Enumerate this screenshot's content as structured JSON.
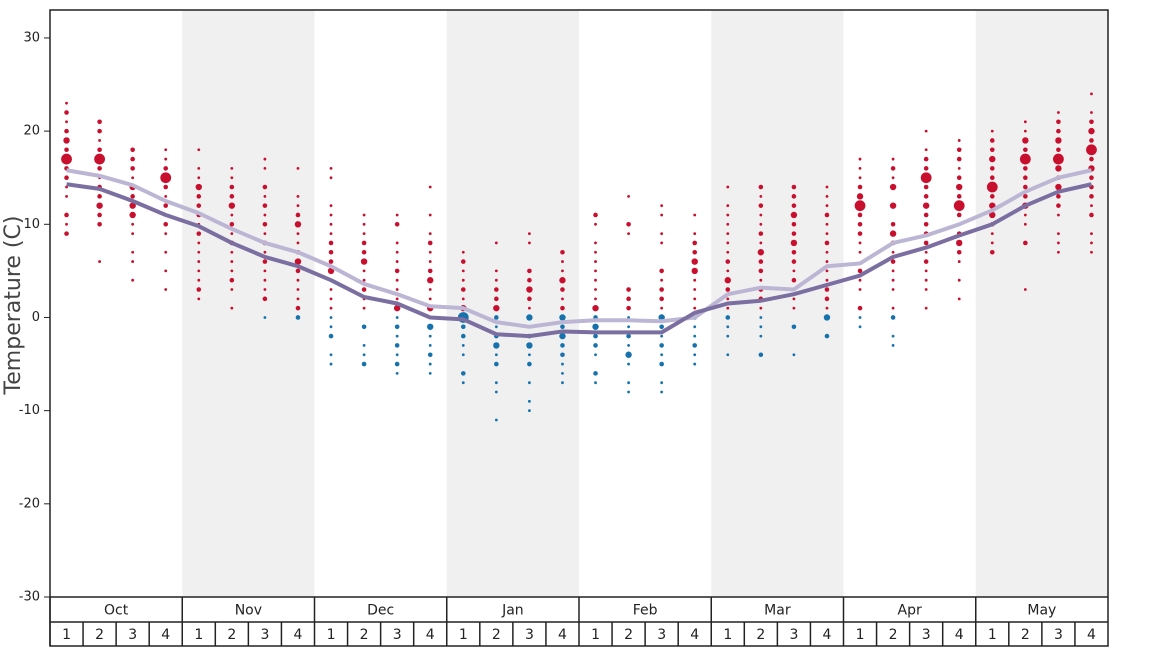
{
  "chart_data": {
    "type": "dotplot",
    "ylabel": "Temperature (C)",
    "months": [
      "Oct",
      "Nov",
      "Dec",
      "Jan",
      "Feb",
      "Mar",
      "Apr",
      "May"
    ],
    "week_numbers": [
      1,
      2,
      3,
      4
    ],
    "ylim": [
      -30,
      33
    ],
    "yticks": [
      -30,
      -20,
      -10,
      0,
      10,
      20,
      30
    ],
    "warm_color": "#c8102e",
    "cold_color": "#1572ad",
    "shade_color": "#f0f0f0",
    "weeks": [
      {
        "temps": [
          23,
          22,
          21,
          20,
          19,
          18,
          17,
          16,
          15,
          14,
          13,
          11,
          10,
          9
        ],
        "counts": [
          1,
          2,
          1,
          2,
          3,
          2,
          4,
          2,
          2,
          1,
          1,
          2,
          1,
          2
        ]
      },
      {
        "temps": [
          21,
          20,
          19,
          18,
          17,
          16,
          15,
          14,
          13,
          12,
          11,
          10,
          6
        ],
        "counts": [
          2,
          2,
          1,
          2,
          4,
          2,
          1,
          2,
          2,
          3,
          2,
          2,
          1
        ]
      },
      {
        "temps": [
          18,
          17,
          16,
          15,
          14,
          13,
          12,
          11,
          10,
          9,
          7,
          6,
          4
        ],
        "counts": [
          2,
          2,
          2,
          1,
          3,
          2,
          3,
          3,
          1,
          1,
          1,
          1,
          1
        ]
      },
      {
        "temps": [
          18,
          17,
          16,
          15,
          14,
          13,
          12,
          11,
          10,
          9,
          7,
          5,
          3
        ],
        "counts": [
          1,
          1,
          2,
          4,
          2,
          1,
          2,
          1,
          2,
          1,
          1,
          1,
          1
        ]
      },
      {
        "temps": [
          18,
          16,
          15,
          14,
          13,
          12,
          11,
          10,
          9,
          8,
          7,
          6,
          5,
          4,
          3,
          2
        ],
        "counts": [
          1,
          1,
          1,
          3,
          2,
          2,
          2,
          1,
          2,
          1,
          1,
          1,
          1,
          1,
          2,
          1
        ]
      },
      {
        "temps": [
          16,
          15,
          14,
          13,
          12,
          11,
          10,
          9,
          8,
          7,
          6,
          5,
          4,
          3,
          1
        ],
        "counts": [
          1,
          1,
          2,
          2,
          3,
          1,
          2,
          1,
          2,
          1,
          1,
          1,
          2,
          1,
          1
        ]
      },
      {
        "temps": [
          17,
          16,
          14,
          13,
          12,
          11,
          10,
          9,
          8,
          7,
          6,
          5,
          4,
          3,
          2,
          0
        ],
        "counts": [
          1,
          1,
          2,
          1,
          2,
          1,
          2,
          1,
          2,
          1,
          2,
          1,
          1,
          1,
          2,
          1
        ]
      },
      {
        "temps": [
          16,
          13,
          12,
          11,
          10,
          9,
          8,
          7,
          6,
          5,
          4,
          3,
          2,
          1,
          0
        ],
        "counts": [
          1,
          1,
          1,
          2,
          3,
          1,
          1,
          2,
          3,
          2,
          1,
          1,
          1,
          2,
          2
        ]
      },
      {
        "temps": [
          16,
          15,
          12,
          11,
          10,
          9,
          8,
          7,
          6,
          5,
          4,
          3,
          2,
          1,
          0,
          -1,
          -2,
          -4,
          -5
        ],
        "counts": [
          1,
          1,
          1,
          1,
          1,
          1,
          2,
          2,
          2,
          3,
          1,
          1,
          1,
          1,
          1,
          1,
          2,
          1,
          1
        ]
      },
      {
        "temps": [
          11,
          10,
          9,
          8,
          7,
          6,
          5,
          4,
          3,
          2,
          1,
          -1,
          -3,
          -4,
          -5
        ],
        "counts": [
          1,
          1,
          1,
          2,
          2,
          3,
          1,
          1,
          2,
          1,
          1,
          2,
          1,
          1,
          2
        ]
      },
      {
        "temps": [
          11,
          10,
          8,
          7,
          6,
          5,
          4,
          3,
          2,
          1,
          0,
          -1,
          -2,
          -3,
          -4,
          -5,
          -6
        ],
        "counts": [
          1,
          2,
          1,
          1,
          1,
          2,
          1,
          1,
          1,
          3,
          1,
          2,
          1,
          2,
          1,
          2,
          1
        ]
      },
      {
        "temps": [
          14,
          11,
          9,
          8,
          7,
          6,
          5,
          4,
          3,
          2,
          1,
          0,
          -1,
          -2,
          -3,
          -4,
          -5,
          -6
        ],
        "counts": [
          1,
          1,
          1,
          2,
          1,
          1,
          2,
          3,
          1,
          1,
          3,
          1,
          3,
          1,
          1,
          2,
          1,
          1
        ]
      },
      {
        "temps": [
          7,
          6,
          5,
          4,
          3,
          2,
          1,
          0,
          -1,
          -2,
          -3,
          -4,
          -6,
          -7
        ],
        "counts": [
          1,
          2,
          1,
          1,
          2,
          1,
          3,
          4,
          2,
          2,
          1,
          1,
          2,
          1
        ]
      },
      {
        "temps": [
          8,
          5,
          4,
          3,
          2,
          1,
          0,
          -1,
          -2,
          -3,
          -4,
          -5,
          -7,
          -8,
          -11
        ],
        "counts": [
          1,
          1,
          1,
          2,
          2,
          3,
          2,
          1,
          2,
          3,
          1,
          2,
          1,
          1,
          1
        ]
      },
      {
        "temps": [
          9,
          8,
          5,
          4,
          3,
          2,
          1,
          0,
          -1,
          -2,
          -3,
          -4,
          -5,
          -7,
          -9,
          -10
        ],
        "counts": [
          1,
          1,
          2,
          2,
          3,
          2,
          1,
          3,
          1,
          2,
          3,
          1,
          2,
          1,
          1,
          1
        ]
      },
      {
        "temps": [
          7,
          6,
          5,
          4,
          3,
          2,
          1,
          0,
          -1,
          -2,
          -3,
          -4,
          -5,
          -6,
          -7
        ],
        "counts": [
          2,
          1,
          1,
          3,
          2,
          1,
          2,
          3,
          2,
          3,
          2,
          2,
          1,
          1,
          1
        ]
      },
      {
        "temps": [
          11,
          10,
          8,
          7,
          6,
          5,
          4,
          3,
          2,
          1,
          0,
          -1,
          -2,
          -3,
          -4,
          -6,
          -7
        ],
        "counts": [
          2,
          1,
          1,
          1,
          1,
          1,
          1,
          1,
          1,
          3,
          2,
          3,
          2,
          2,
          1,
          2,
          1
        ]
      },
      {
        "temps": [
          13,
          10,
          9,
          3,
          2,
          1,
          0,
          -1,
          -2,
          -3,
          -4,
          -5,
          -7,
          -8
        ],
        "counts": [
          1,
          2,
          1,
          2,
          2,
          2,
          1,
          1,
          2,
          1,
          3,
          1,
          1,
          1
        ]
      },
      {
        "temps": [
          12,
          11,
          9,
          8,
          5,
          4,
          3,
          2,
          1,
          0,
          -1,
          -2,
          -3,
          -4,
          -5,
          -7,
          -8
        ],
        "counts": [
          1,
          1,
          1,
          1,
          2,
          1,
          2,
          2,
          1,
          3,
          2,
          1,
          2,
          1,
          2,
          1,
          1
        ]
      },
      {
        "temps": [
          11,
          9,
          8,
          7,
          6,
          5,
          4,
          3,
          2,
          1,
          0,
          -1,
          -2,
          -3,
          -4,
          -5
        ],
        "counts": [
          1,
          1,
          2,
          2,
          3,
          3,
          1,
          1,
          1,
          1,
          2,
          1,
          1,
          2,
          1,
          1
        ]
      },
      {
        "temps": [
          14,
          12,
          11,
          10,
          9,
          8,
          7,
          6,
          5,
          4,
          3,
          2,
          1,
          0,
          -1,
          -2,
          -4
        ],
        "counts": [
          1,
          1,
          1,
          1,
          1,
          1,
          1,
          2,
          1,
          3,
          2,
          1,
          1,
          2,
          1,
          1,
          1
        ]
      },
      {
        "temps": [
          14,
          13,
          12,
          11,
          10,
          9,
          8,
          7,
          6,
          5,
          4,
          3,
          2,
          1,
          0,
          -1,
          -2,
          -4
        ],
        "counts": [
          2,
          1,
          2,
          1,
          1,
          2,
          1,
          3,
          2,
          2,
          1,
          2,
          2,
          1,
          1,
          1,
          1,
          2
        ]
      },
      {
        "temps": [
          14,
          13,
          12,
          11,
          10,
          9,
          8,
          7,
          6,
          5,
          4,
          3,
          2,
          1,
          -1,
          -4
        ],
        "counts": [
          2,
          2,
          2,
          3,
          2,
          2,
          3,
          2,
          2,
          1,
          2,
          1,
          1,
          1,
          2,
          1
        ]
      },
      {
        "temps": [
          14,
          13,
          12,
          11,
          10,
          9,
          8,
          7,
          6,
          5,
          4,
          3,
          2,
          1,
          0,
          -2
        ],
        "counts": [
          1,
          1,
          1,
          2,
          1,
          1,
          2,
          1,
          1,
          1,
          1,
          2,
          2,
          1,
          3,
          2
        ]
      },
      {
        "temps": [
          17,
          16,
          15,
          14,
          13,
          12,
          11,
          10,
          9,
          8,
          7,
          5,
          4,
          3,
          1,
          0,
          -1
        ],
        "counts": [
          1,
          1,
          1,
          2,
          3,
          4,
          2,
          2,
          2,
          1,
          1,
          2,
          1,
          1,
          2,
          1,
          1
        ]
      },
      {
        "temps": [
          17,
          16,
          15,
          14,
          12,
          10,
          9,
          8,
          7,
          6,
          5,
          4,
          3,
          1,
          0,
          -2,
          -3
        ],
        "counts": [
          1,
          2,
          1,
          3,
          3,
          2,
          3,
          2,
          1,
          2,
          1,
          1,
          1,
          1,
          2,
          1,
          1
        ]
      },
      {
        "temps": [
          20,
          18,
          17,
          16,
          15,
          14,
          13,
          12,
          11,
          10,
          9,
          8,
          7,
          6,
          5,
          4,
          3,
          1
        ],
        "counts": [
          1,
          1,
          2,
          2,
          4,
          2,
          2,
          3,
          2,
          2,
          2,
          2,
          1,
          2,
          1,
          1,
          1,
          1
        ]
      },
      {
        "temps": [
          19,
          18,
          17,
          16,
          15,
          14,
          13,
          12,
          11,
          10,
          9,
          8,
          7,
          6,
          4,
          2
        ],
        "counts": [
          1,
          2,
          2,
          1,
          2,
          3,
          2,
          4,
          2,
          1,
          2,
          3,
          2,
          1,
          1,
          1
        ]
      },
      {
        "temps": [
          20,
          19,
          18,
          17,
          16,
          15,
          14,
          13,
          12,
          11,
          10,
          9,
          8,
          7
        ],
        "counts": [
          1,
          2,
          2,
          3,
          2,
          2,
          4,
          2,
          3,
          3,
          2,
          1,
          1,
          2
        ]
      },
      {
        "temps": [
          21,
          20,
          19,
          18,
          17,
          16,
          15,
          14,
          13,
          12,
          11,
          10,
          8,
          3
        ],
        "counts": [
          1,
          1,
          3,
          2,
          4,
          2,
          2,
          2,
          2,
          3,
          1,
          1,
          2,
          1
        ]
      },
      {
        "temps": [
          22,
          21,
          20,
          19,
          18,
          17,
          16,
          15,
          14,
          13,
          12,
          11,
          9,
          8,
          7
        ],
        "counts": [
          1,
          2,
          2,
          3,
          2,
          4,
          3,
          2,
          3,
          2,
          2,
          1,
          1,
          1,
          1
        ]
      },
      {
        "temps": [
          24,
          22,
          21,
          20,
          19,
          18,
          17,
          16,
          15,
          14,
          13,
          12,
          11,
          9,
          8,
          7
        ],
        "counts": [
          1,
          1,
          2,
          3,
          2,
          4,
          2,
          3,
          2,
          2,
          2,
          1,
          2,
          1,
          1,
          1
        ]
      }
    ],
    "series": [
      {
        "color": "#bcb6d4",
        "values": [
          15.8,
          15.2,
          14.2,
          12.5,
          11.2,
          9.5,
          8.0,
          7.0,
          5.5,
          3.6,
          2.5,
          1.2,
          1.0,
          -0.5,
          -1.0,
          -0.5,
          -0.3,
          -0.3,
          -0.4,
          0,
          2.5,
          3.2,
          3.0,
          5.5,
          5.8,
          8.0,
          8.8,
          10.0,
          11.5,
          13.5,
          15.0,
          15.8
        ]
      },
      {
        "color": "#7b6ea0",
        "values": [
          14.3,
          13.8,
          12.5,
          11.0,
          9.8,
          8.0,
          6.5,
          5.5,
          4.0,
          2.2,
          1.5,
          0,
          -0.2,
          -1.8,
          -2.0,
          -1.5,
          -1.6,
          -1.6,
          -1.6,
          0.5,
          1.5,
          1.8,
          2.5,
          3.5,
          4.5,
          6.5,
          7.5,
          8.8,
          10.0,
          12.0,
          13.5,
          14.3
        ]
      }
    ]
  }
}
